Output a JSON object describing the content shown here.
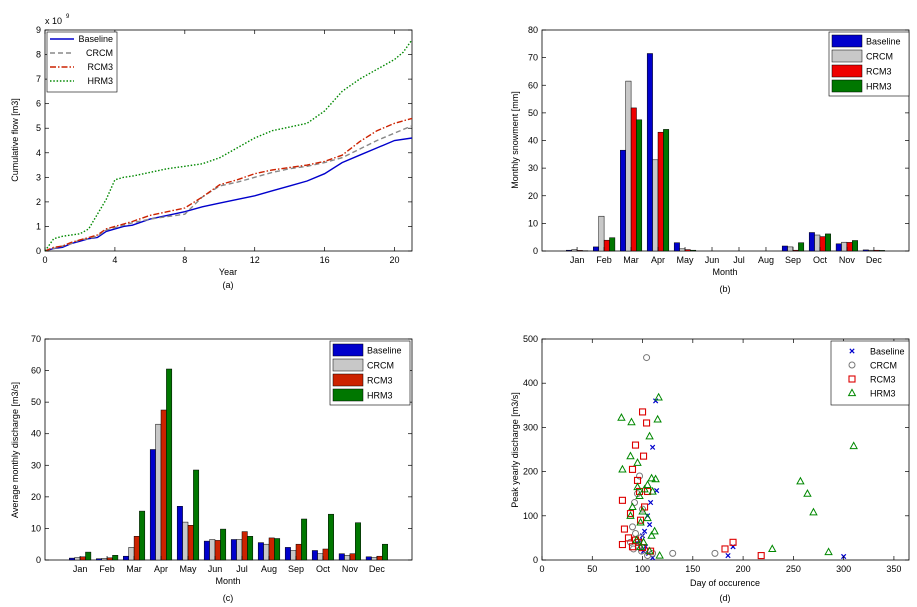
{
  "chart_data": [
    {
      "id": "a",
      "type": "line",
      "caption": "(a)",
      "title": "",
      "xlabel": "Year",
      "ylabel": "Cumulative flow [m3]",
      "exponent_label": "x 10",
      "exponent_power": "9",
      "xlim": [
        0,
        21
      ],
      "ylim": [
        0,
        9
      ],
      "xticks": [
        0,
        4,
        8,
        12,
        16,
        20
      ],
      "yticks": [
        0,
        1,
        2,
        3,
        4,
        5,
        6,
        7,
        8,
        9
      ],
      "grid": false,
      "legend_position": "top-left",
      "series": [
        {
          "name": "Baseline",
          "color": "#0000cc",
          "style": "solid",
          "x": [
            0,
            0.5,
            1,
            1.5,
            2,
            2.5,
            3,
            3.5,
            4,
            4.5,
            5,
            6,
            7,
            8,
            9,
            10,
            11,
            12,
            13,
            14,
            15,
            16,
            17,
            18,
            19,
            20,
            21
          ],
          "y": [
            0,
            0.1,
            0.15,
            0.3,
            0.4,
            0.5,
            0.55,
            0.8,
            0.9,
            1.0,
            1.05,
            1.3,
            1.45,
            1.6,
            1.8,
            1.95,
            2.1,
            2.25,
            2.45,
            2.65,
            2.85,
            3.15,
            3.6,
            3.9,
            4.2,
            4.5,
            4.6
          ]
        },
        {
          "name": "CRCM",
          "color": "#888888",
          "style": "dashed",
          "x": [
            0,
            0.5,
            1,
            1.5,
            2,
            2.5,
            3,
            3.5,
            4,
            4.5,
            5,
            6,
            7,
            8,
            9,
            10,
            11,
            12,
            13,
            14,
            15,
            16,
            17,
            18,
            19,
            20,
            21
          ],
          "y": [
            0,
            0.1,
            0.2,
            0.3,
            0.45,
            0.5,
            0.6,
            0.85,
            0.95,
            1.05,
            1.15,
            1.3,
            1.4,
            1.5,
            2.2,
            2.65,
            2.8,
            3.0,
            3.2,
            3.35,
            3.45,
            3.6,
            3.8,
            4.15,
            4.5,
            4.8,
            5.1
          ]
        },
        {
          "name": "RCM3",
          "color": "#cc2200",
          "style": "dashdot",
          "x": [
            0,
            0.5,
            1,
            1.5,
            2,
            2.5,
            3,
            3.5,
            4,
            4.5,
            5,
            6,
            7,
            8,
            9,
            10,
            11,
            12,
            13,
            14,
            15,
            16,
            17,
            18,
            19,
            20,
            21
          ],
          "y": [
            0,
            0.15,
            0.2,
            0.35,
            0.45,
            0.55,
            0.65,
            0.9,
            1.0,
            1.1,
            1.2,
            1.45,
            1.6,
            1.75,
            2.2,
            2.7,
            2.9,
            3.15,
            3.3,
            3.4,
            3.5,
            3.65,
            3.9,
            4.45,
            4.9,
            5.2,
            5.4
          ]
        },
        {
          "name": "HRM3",
          "color": "#008800",
          "style": "dotted",
          "x": [
            0,
            0.5,
            1,
            1.5,
            2,
            2.5,
            3,
            3.5,
            4,
            4.5,
            5,
            6,
            7,
            8,
            9,
            10,
            11,
            12,
            13,
            14,
            15,
            16,
            17,
            18,
            19,
            20,
            20.5,
            21
          ],
          "y": [
            0,
            0.5,
            0.6,
            0.65,
            0.7,
            0.9,
            1.5,
            2.1,
            2.9,
            3.0,
            3.05,
            3.2,
            3.35,
            3.45,
            3.55,
            3.8,
            4.2,
            4.6,
            4.9,
            5.05,
            5.2,
            5.7,
            6.5,
            7.0,
            7.4,
            7.8,
            8.1,
            8.6
          ]
        }
      ]
    },
    {
      "id": "b",
      "type": "bar",
      "caption": "(b)",
      "title": "",
      "xlabel": "Month",
      "ylabel": "Monthly snowment [mm]",
      "ylim": [
        0,
        80
      ],
      "yticks": [
        0,
        10,
        20,
        30,
        40,
        50,
        60,
        70,
        80
      ],
      "grid": false,
      "legend_position": "top-right",
      "categories": [
        "Jan",
        "Feb",
        "Mar",
        "Apr",
        "May",
        "Jun",
        "Jul",
        "Aug",
        "Sep",
        "Oct",
        "Nov",
        "Dec"
      ],
      "series": [
        {
          "name": "Baseline",
          "color": "#0000cc",
          "values": [
            0.3,
            1.5,
            36.5,
            71.5,
            3.0,
            0,
            0,
            0,
            1.8,
            6.7,
            2.6,
            0.4
          ]
        },
        {
          "name": "CRCM",
          "color": "#c8c8c8",
          "values": [
            0.5,
            12.6,
            61.5,
            33.0,
            0.8,
            0,
            0,
            0,
            1.5,
            5.8,
            3.2,
            0.3
          ]
        },
        {
          "name": "RCM3",
          "color": "#ee0000",
          "values": [
            0.2,
            3.9,
            51.8,
            43.0,
            0.5,
            0,
            0,
            0,
            0.3,
            5.2,
            3.1,
            0.3
          ]
        },
        {
          "name": "HRM3",
          "color": "#007700",
          "values": [
            0.1,
            4.8,
            47.5,
            44.0,
            0.3,
            0,
            0,
            0,
            3.0,
            6.2,
            3.8,
            0.2
          ]
        }
      ]
    },
    {
      "id": "c",
      "type": "bar",
      "caption": "(c)",
      "title": "",
      "xlabel": "Month",
      "ylabel": "Average monthly discharge [m3/s]",
      "ylim": [
        0,
        70
      ],
      "yticks": [
        0,
        10,
        20,
        30,
        40,
        50,
        60,
        70
      ],
      "grid": false,
      "legend_position": "top-right",
      "categories": [
        "Jan",
        "Feb",
        "Mar",
        "Apr",
        "May",
        "Jun",
        "Jul",
        "Aug",
        "Sep",
        "Oct",
        "Nov",
        "Dec"
      ],
      "series": [
        {
          "name": "Baseline",
          "color": "#0000cc",
          "values": [
            0.6,
            0.4,
            1.2,
            35.0,
            17.0,
            6.0,
            6.5,
            5.5,
            4.0,
            3.0,
            2.0,
            1.0
          ]
        },
        {
          "name": "CRCM",
          "color": "#c8c8c8",
          "values": [
            0.8,
            0.5,
            4.0,
            43.0,
            12.0,
            6.5,
            6.5,
            5.0,
            3.0,
            2.0,
            1.5,
            0.8
          ]
        },
        {
          "name": "RCM3",
          "color": "#cc2200",
          "values": [
            1.0,
            0.7,
            7.5,
            47.5,
            11.0,
            6.2,
            9.0,
            7.0,
            5.0,
            3.5,
            2.0,
            1.2
          ]
        },
        {
          "name": "HRM3",
          "color": "#007700",
          "values": [
            2.5,
            1.5,
            15.5,
            60.5,
            28.5,
            9.8,
            7.5,
            6.8,
            13.0,
            14.5,
            11.8,
            5.0
          ]
        }
      ]
    },
    {
      "id": "d",
      "type": "scatter",
      "caption": "(d)",
      "title": "",
      "xlabel": "Day of occurence",
      "ylabel": "Peak yearly discharge [m3/s]",
      "xlim": [
        0,
        365
      ],
      "ylim": [
        0,
        500
      ],
      "xticks": [
        0,
        50,
        100,
        150,
        200,
        250,
        300,
        350
      ],
      "yticks": [
        0,
        100,
        200,
        300,
        400,
        500
      ],
      "grid": false,
      "legend_position": "top-right",
      "series": [
        {
          "name": "Baseline",
          "marker": "x",
          "color": "#0000cc",
          "points": [
            [
              113,
              360
            ],
            [
              110,
              255
            ],
            [
              114,
              157
            ],
            [
              108,
              130
            ],
            [
              105,
              100
            ],
            [
              107,
              80
            ],
            [
              102,
              65
            ],
            [
              100,
              55
            ],
            [
              97,
              45
            ],
            [
              95,
              38
            ],
            [
              103,
              30
            ],
            [
              98,
              25
            ],
            [
              101,
              20
            ],
            [
              106,
              15
            ],
            [
              190,
              30
            ],
            [
              185,
              10
            ],
            [
              300,
              8
            ],
            [
              110,
              5
            ]
          ]
        },
        {
          "name": "CRCM",
          "marker": "circle",
          "color": "#777777",
          "points": [
            [
              104,
              458
            ],
            [
              97,
              190
            ],
            [
              95,
              150
            ],
            [
              92,
              130
            ],
            [
              100,
              115
            ],
            [
              90,
              75
            ],
            [
              93,
              60
            ],
            [
              98,
              50
            ],
            [
              88,
              40
            ],
            [
              96,
              30
            ],
            [
              91,
              25
            ],
            [
              99,
              20
            ],
            [
              110,
              15
            ],
            [
              130,
              15
            ],
            [
              172,
              15
            ],
            [
              105,
              10
            ]
          ]
        },
        {
          "name": "RCM3",
          "marker": "square",
          "color": "#dd0000",
          "points": [
            [
              100,
              335
            ],
            [
              104,
              310
            ],
            [
              101,
              235
            ],
            [
              93,
              260
            ],
            [
              90,
              205
            ],
            [
              95,
              180
            ],
            [
              97,
              155
            ],
            [
              105,
              155
            ],
            [
              80,
              135
            ],
            [
              102,
              120
            ],
            [
              88,
              105
            ],
            [
              98,
              90
            ],
            [
              82,
              70
            ],
            [
              86,
              50
            ],
            [
              93,
              45
            ],
            [
              96,
              40
            ],
            [
              80,
              35
            ],
            [
              90,
              30
            ],
            [
              100,
              28
            ],
            [
              108,
              20
            ],
            [
              190,
              40
            ],
            [
              182,
              25
            ],
            [
              218,
              10
            ]
          ]
        },
        {
          "name": "HRM3",
          "marker": "triangle",
          "color": "#008800",
          "points": [
            [
              79,
              322
            ],
            [
              89,
              312
            ],
            [
              115,
              318
            ],
            [
              116,
              368
            ],
            [
              107,
              280
            ],
            [
              88,
              235
            ],
            [
              95,
              220
            ],
            [
              80,
              205
            ],
            [
              109,
              185
            ],
            [
              113,
              183
            ],
            [
              105,
              170
            ],
            [
              95,
              165
            ],
            [
              102,
              160
            ],
            [
              110,
              155
            ],
            [
              97,
              145
            ],
            [
              90,
              120
            ],
            [
              100,
              110
            ],
            [
              88,
              100
            ],
            [
              105,
              95
            ],
            [
              98,
              85
            ],
            [
              112,
              65
            ],
            [
              109,
              55
            ],
            [
              94,
              45
            ],
            [
              101,
              40
            ],
            [
              98,
              30
            ],
            [
              107,
              20
            ],
            [
              117,
              10
            ],
            [
              257,
              178
            ],
            [
              264,
              150
            ],
            [
              270,
              108
            ],
            [
              229,
              25
            ],
            [
              285,
              18
            ],
            [
              310,
              258
            ]
          ]
        }
      ]
    }
  ]
}
